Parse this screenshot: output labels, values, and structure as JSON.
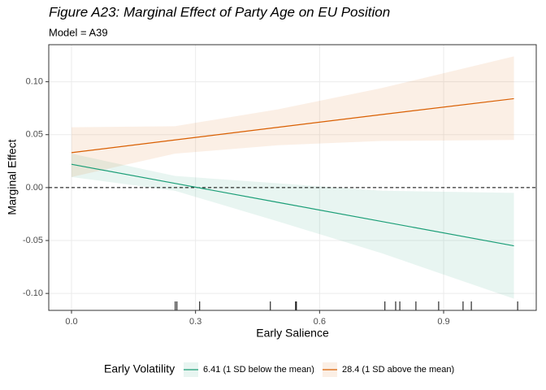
{
  "chart_data": {
    "type": "line",
    "title": "Figure A23: Marginal Effect of Party Age on EU Position",
    "subtitle": "Model = A39",
    "x_label": "Early Salience",
    "y_label": "Marginal Effect",
    "legend_title": "Early Volatility",
    "legend_position": "bottom",
    "grid": true,
    "x": [
      0,
      0.25,
      0.5,
      0.75,
      1.07
    ],
    "series": [
      {
        "name": "6.41 (1 SD below the mean)",
        "color": "#1b9e77",
        "values": [
          0.022,
          0.004,
          -0.014,
          -0.032,
          -0.055
        ],
        "lower": [
          0.01,
          -0.003,
          -0.032,
          -0.062,
          -0.105
        ],
        "upper": [
          0.032,
          0.011,
          0.004,
          -0.003,
          -0.005
        ]
      },
      {
        "name": "28.4 (1 SD above the mean)",
        "color": "#d95f02",
        "values": [
          0.033,
          0.045,
          0.057,
          0.069,
          0.084
        ],
        "lower": [
          0.01,
          0.032,
          0.04,
          0.044,
          0.045
        ],
        "upper": [
          0.057,
          0.058,
          0.074,
          0.094,
          0.124
        ]
      }
    ],
    "rug": [
      0.251,
      0.255,
      0.31,
      0.481,
      0.542,
      0.544,
      0.758,
      0.784,
      0.794,
      0.833,
      0.888,
      0.947,
      0.967,
      1.079
    ],
    "reference_line": 0,
    "xlim": [
      -0.055,
      1.124
    ],
    "ylim": [
      -0.116,
      0.135
    ],
    "xticks": [
      {
        "value": 0,
        "label": "0.0"
      },
      0.3,
      0.6,
      0.9
    ],
    "yticks": [
      {
        "value": -0.1,
        "label": "-0.10"
      },
      -0.05,
      {
        "value": 0,
        "label": "0.00"
      },
      0.05,
      {
        "value": 0.1,
        "label": "0.10"
      }
    ]
  }
}
